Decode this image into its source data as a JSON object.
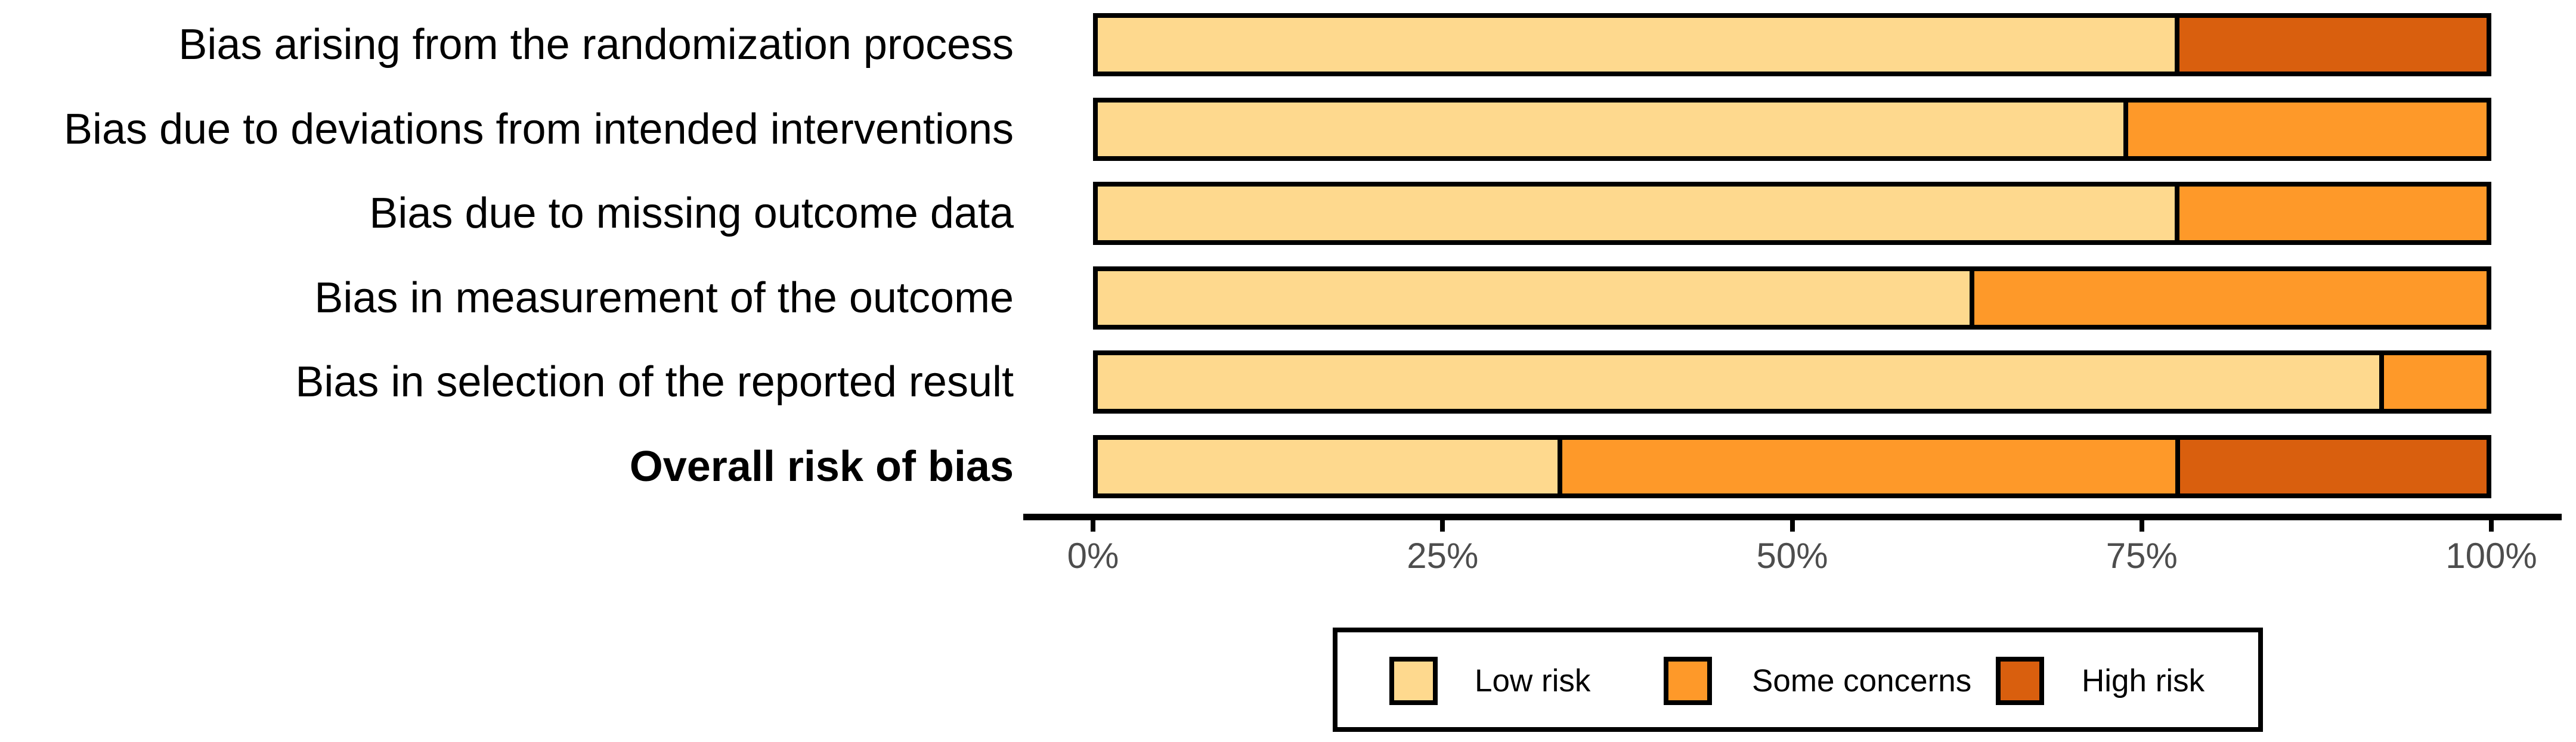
{
  "chart_data": {
    "type": "bar",
    "variant": "horizontal-stacked-percentage",
    "title": "",
    "xlabel": "",
    "ylabel": "",
    "grid": false,
    "categories": [
      "Bias arising from the randomization process",
      "Bias due to deviations from intended interventions",
      "Bias due to missing outcome data",
      "Bias in measurement of the outcome",
      "Bias in selection of the reported result",
      "Overall risk of bias"
    ],
    "bold_category": "Overall risk of bias",
    "series": [
      {
        "name": "Low risk",
        "color": "#FED98E",
        "values": [
          77.8,
          74.1,
          77.8,
          63.0,
          92.6,
          33.3
        ]
      },
      {
        "name": "Some concerns",
        "color": "#FE9929",
        "values": [
          0,
          25.9,
          22.2,
          37.0,
          7.4,
          44.4
        ]
      },
      {
        "name": "High risk",
        "color": "#D95F0E",
        "values": [
          22.2,
          0,
          0,
          0,
          0,
          22.2
        ]
      }
    ],
    "x_axis": {
      "range": [
        0,
        100
      ],
      "tick_values": [
        0,
        25,
        50,
        75,
        100
      ],
      "tick_labels": [
        "0%",
        "25%",
        "50%",
        "75%",
        "100%"
      ],
      "tick_label_color": "#4d4d4d"
    },
    "legend": {
      "position": "bottom",
      "entries": [
        {
          "label": "Low risk",
          "color": "#FED98E"
        },
        {
          "label": "Some concerns",
          "color": "#FE9929"
        },
        {
          "label": "High risk",
          "color": "#D95F0E"
        }
      ]
    },
    "bar_border_color": "#000000",
    "background_color": "#ffffff"
  }
}
